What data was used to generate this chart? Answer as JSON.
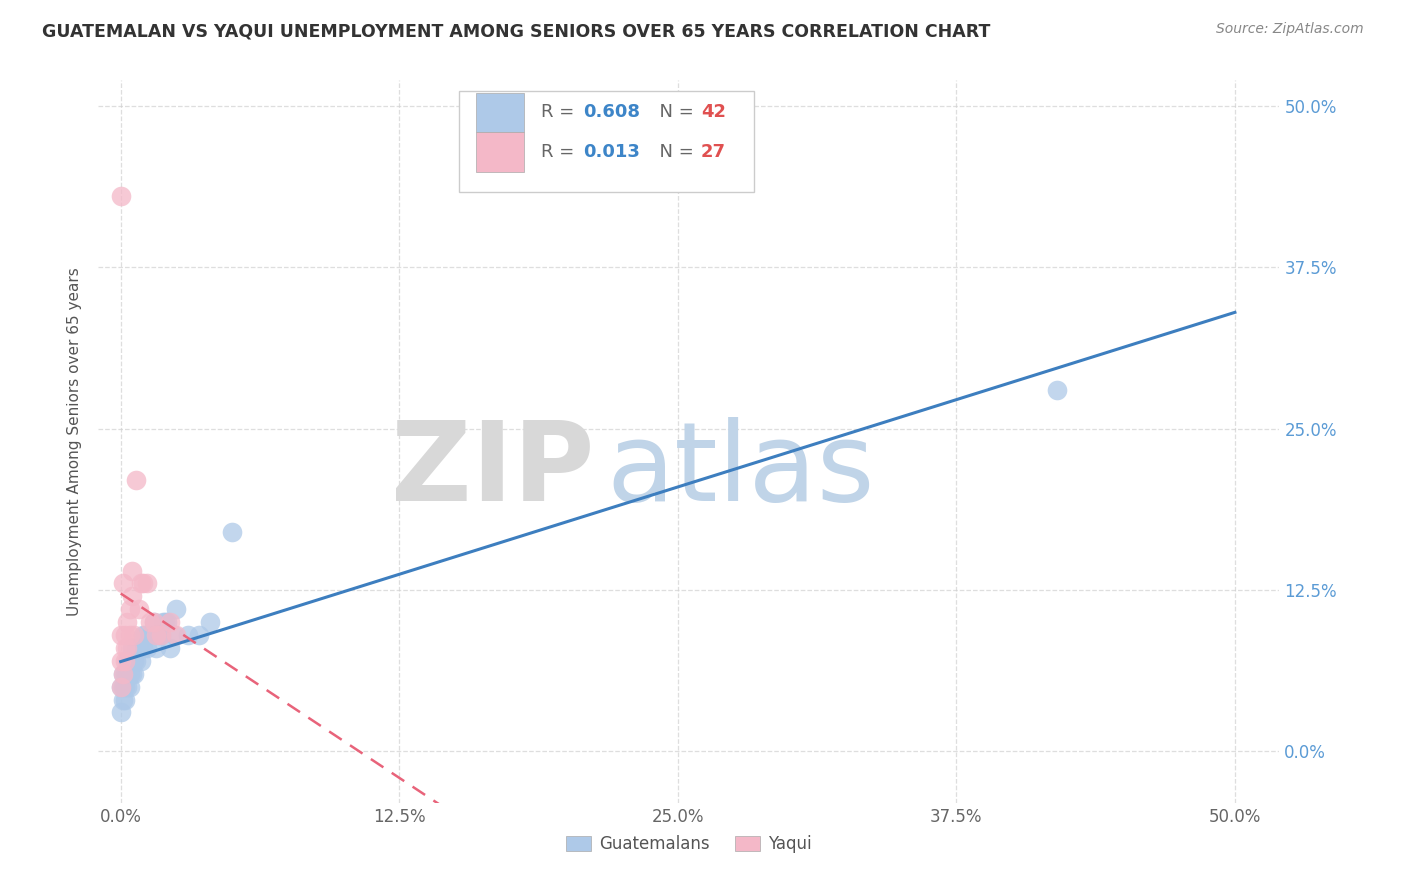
{
  "title": "GUATEMALAN VS YAQUI UNEMPLOYMENT AMONG SENIORS OVER 65 YEARS CORRELATION CHART",
  "source": "Source: ZipAtlas.com",
  "ylabel": "Unemployment Among Seniors over 65 years",
  "guatemalan_color": "#aec9e8",
  "yaqui_color": "#f4b8c8",
  "guatemalan_line_color": "#3d7ebf",
  "yaqui_line_color": "#e8637a",
  "right_tick_color": "#5b9bd5",
  "background_color": "#ffffff",
  "grid_color": "#d0d0d0",
  "watermark_zip_color": "#e0e0e0",
  "watermark_atlas_color": "#c5d8ec",
  "guatemalan_x": [
    0.0,
    0.0,
    0.001,
    0.001,
    0.001,
    0.002,
    0.002,
    0.002,
    0.003,
    0.003,
    0.003,
    0.004,
    0.004,
    0.004,
    0.005,
    0.005,
    0.006,
    0.006,
    0.007,
    0.007,
    0.008,
    0.009,
    0.01,
    0.01,
    0.011,
    0.012,
    0.013,
    0.015,
    0.016,
    0.017,
    0.018,
    0.019,
    0.02,
    0.021,
    0.022,
    0.024,
    0.025,
    0.03,
    0.035,
    0.04,
    0.42,
    0.05
  ],
  "guatemalan_y": [
    0.03,
    0.05,
    0.04,
    0.06,
    0.05,
    0.06,
    0.05,
    0.04,
    0.07,
    0.06,
    0.05,
    0.07,
    0.06,
    0.05,
    0.08,
    0.06,
    0.07,
    0.06,
    0.08,
    0.07,
    0.08,
    0.07,
    0.09,
    0.08,
    0.09,
    0.08,
    0.09,
    0.1,
    0.08,
    0.09,
    0.09,
    0.1,
    0.1,
    0.1,
    0.08,
    0.09,
    0.11,
    0.09,
    0.09,
    0.1,
    0.28,
    0.17
  ],
  "yaqui_x": [
    0.0,
    0.0,
    0.0,
    0.001,
    0.001,
    0.002,
    0.002,
    0.002,
    0.003,
    0.003,
    0.004,
    0.004,
    0.005,
    0.005,
    0.006,
    0.007,
    0.008,
    0.009,
    0.01,
    0.012,
    0.013,
    0.015,
    0.016,
    0.018,
    0.022,
    0.025,
    0.0
  ],
  "yaqui_y": [
    0.05,
    0.07,
    0.09,
    0.06,
    0.13,
    0.07,
    0.09,
    0.08,
    0.1,
    0.08,
    0.11,
    0.09,
    0.14,
    0.12,
    0.09,
    0.21,
    0.11,
    0.13,
    0.13,
    0.13,
    0.1,
    0.1,
    0.09,
    0.09,
    0.1,
    0.09,
    0.43
  ],
  "xlim": [
    0.0,
    0.5
  ],
  "ylim": [
    -0.04,
    0.52
  ],
  "x_ticks": [
    0.0,
    0.125,
    0.25,
    0.375,
    0.5
  ],
  "y_ticks": [
    0.0,
    0.125,
    0.25,
    0.375,
    0.5
  ],
  "legend_R_guatemalan": "0.608",
  "legend_N_guatemalan": "42",
  "legend_R_yaqui": "0.013",
  "legend_N_yaqui": "27"
}
